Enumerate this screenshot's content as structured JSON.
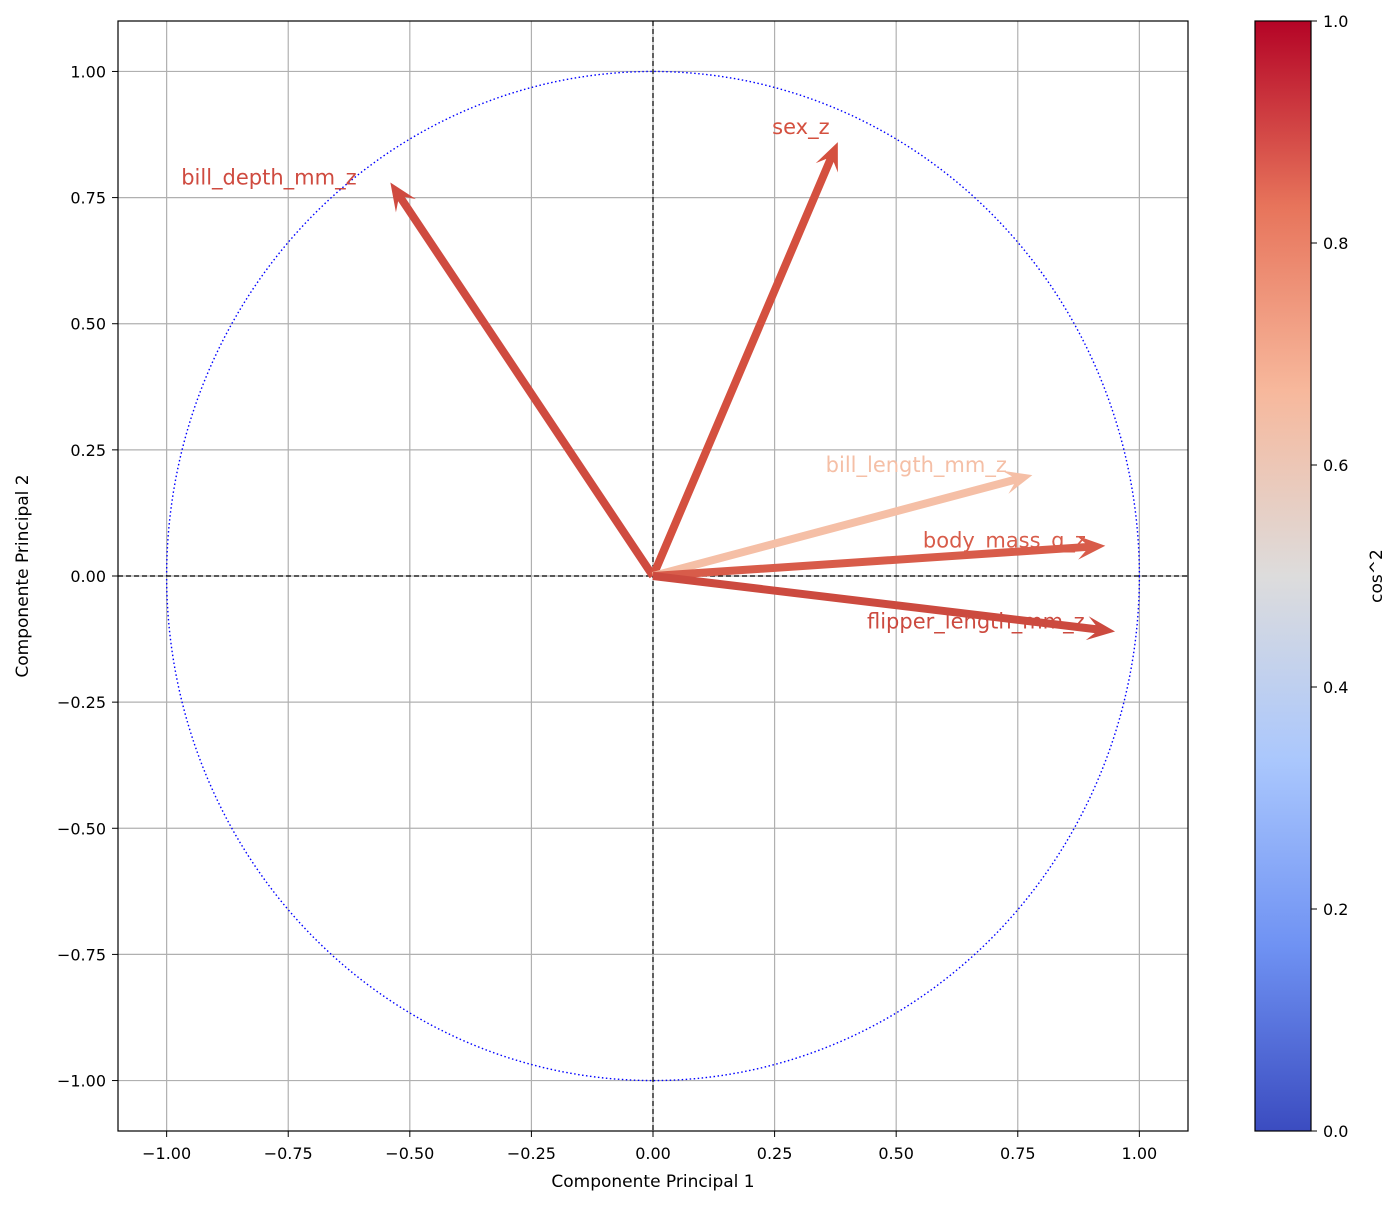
{
  "chart_data": {
    "type": "vector-plot",
    "title": "",
    "xlabel": "Componente Principal 1",
    "ylabel": "Componente Principal 2",
    "xlim": [
      -1.1,
      1.1
    ],
    "ylim": [
      -1.1,
      1.1
    ],
    "xticks": [
      -1.0,
      -0.75,
      -0.5,
      -0.25,
      0.0,
      0.25,
      0.5,
      0.75,
      1.0
    ],
    "yticks": [
      -1.0,
      -0.75,
      -0.5,
      -0.25,
      0.0,
      0.25,
      0.5,
      0.75,
      1.0
    ],
    "xtick_labels": [
      "−1.00",
      "−0.75",
      "−0.50",
      "−0.25",
      "0.00",
      "0.25",
      "0.50",
      "0.75",
      "1.00"
    ],
    "ytick_labels": [
      "−1.00",
      "−0.75",
      "−0.50",
      "−0.25",
      "0.00",
      "0.25",
      "0.50",
      "0.75",
      "1.00"
    ],
    "grid": true,
    "unit_circle": {
      "radius": 1.0,
      "color": "#0000ff",
      "style": "dotted"
    },
    "reference_lines": {
      "x": 0,
      "y": 0,
      "style": "dashed",
      "color": "#000000"
    },
    "vectors": [
      {
        "name": "bill_depth_mm_z",
        "x": -0.54,
        "y": 0.78,
        "cos2": 0.9,
        "color": "#cf4b40",
        "label_x": -0.97,
        "label_y": 0.79
      },
      {
        "name": "sex_z",
        "x": 0.38,
        "y": 0.86,
        "cos2": 0.88,
        "color": "#d4503f",
        "label_x": 0.245,
        "label_y": 0.89
      },
      {
        "name": "bill_length_mm_z",
        "x": 0.78,
        "y": 0.2,
        "cos2": 0.65,
        "color": "#f5bfa6",
        "label_x": 0.355,
        "label_y": 0.22
      },
      {
        "name": "body_mass_g_z",
        "x": 0.93,
        "y": 0.06,
        "cos2": 0.87,
        "color": "#d85c4a",
        "label_x": 0.555,
        "label_y": 0.07
      },
      {
        "name": "flipper_length_mm_z",
        "x": 0.95,
        "y": -0.11,
        "cos2": 0.91,
        "color": "#cc4a3f",
        "label_x": 0.44,
        "label_y": -0.09
      }
    ],
    "colorbar": {
      "label": "cos^2",
      "cmap": "coolwarm",
      "range": [
        0.0,
        1.0
      ],
      "ticks": [
        "0.0",
        "0.2",
        "0.4",
        "0.6",
        "0.8",
        "1.0"
      ],
      "stops": [
        "#3b4cc0",
        "#6f92f3",
        "#aac7fd",
        "#dddcdc",
        "#f7b89c",
        "#e7745b",
        "#b40426"
      ]
    }
  }
}
